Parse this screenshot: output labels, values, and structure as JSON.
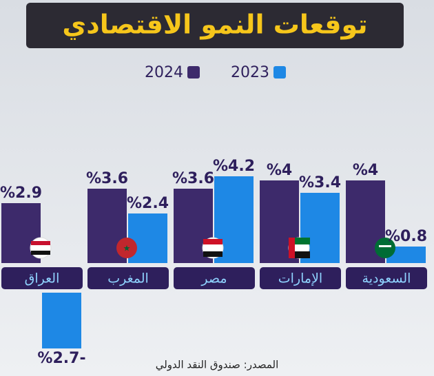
{
  "chart_data": {
    "type": "bar",
    "title": "توقعات النمو الاقتصادي",
    "categories": [
      "العراق",
      "المغرب",
      "مصر",
      "الإمارات",
      "السعودية"
    ],
    "series": [
      {
        "name": "2024",
        "color": "#3d2a6b",
        "values": [
          2.9,
          3.6,
          3.6,
          4,
          4
        ],
        "value_labels": [
          "%2.9",
          "%3.6",
          "%3.6",
          "%4",
          "%4"
        ]
      },
      {
        "name": "2023",
        "color": "#1e88e5",
        "values": [
          -2.7,
          2.4,
          4.2,
          3.4,
          0.8
        ],
        "value_labels": [
          "%2.7-",
          "%2.4",
          "%4.2",
          "%3.4",
          "%0.8"
        ]
      }
    ],
    "source": "المصدر: صندوق النقد الدولي"
  }
}
